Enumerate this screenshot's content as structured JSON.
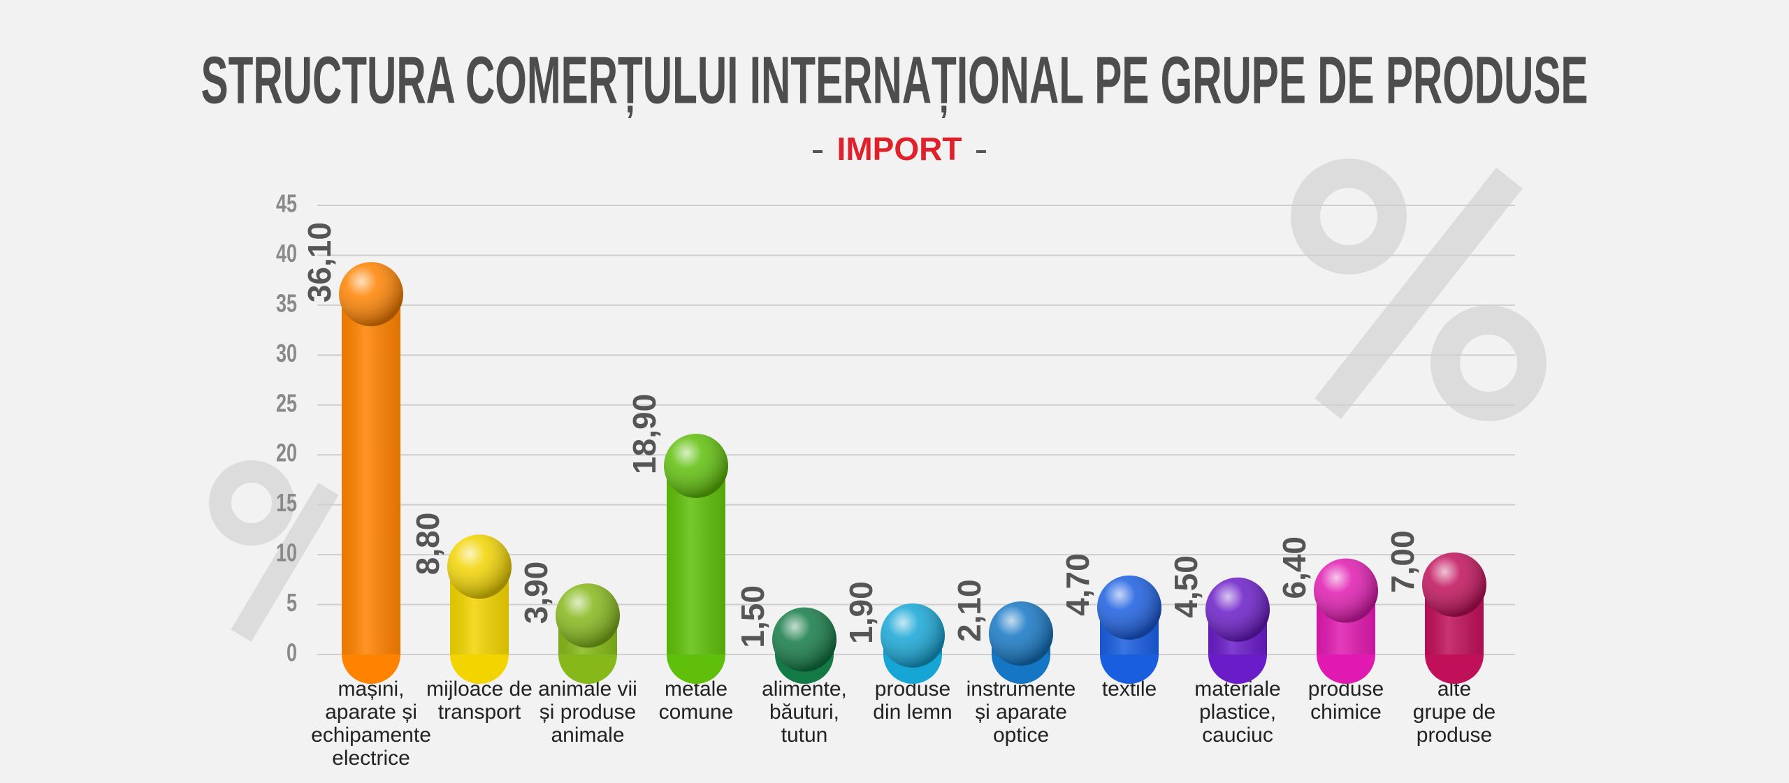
{
  "chart_data": {
    "type": "bar",
    "title": "STRUCTURA COMERȚULUI INTERNAȚIONAL PE GRUPE DE PRODUSE",
    "subtitle": "IMPORT",
    "categories": [
      [
        "mașini,",
        "aparate și",
        "echipamente",
        "electrice"
      ],
      [
        "mijloace de",
        "transport"
      ],
      [
        "animale vii",
        "și produse",
        "animale"
      ],
      [
        "metale",
        "comune"
      ],
      [
        "alimente,",
        "băuturi,",
        "tutun"
      ],
      [
        "produse",
        "din lemn"
      ],
      [
        "instrumente",
        "și aparate",
        "optice"
      ],
      [
        "textile"
      ],
      [
        "materiale",
        "plastice,",
        "cauciuc"
      ],
      [
        "produse",
        "chimice"
      ],
      [
        "alte",
        "grupe de",
        "produse"
      ]
    ],
    "values": [
      36.1,
      8.8,
      3.9,
      18.9,
      1.5,
      1.9,
      2.1,
      4.7,
      4.5,
      6.4,
      7.0
    ],
    "value_labels": [
      "36,10",
      "8,80",
      "3,90",
      "18,90",
      "1,50",
      "1,90",
      "2,10",
      "4,70",
      "4,50",
      "6,40",
      "7,00"
    ],
    "colors": [
      "#ff8200",
      "#f2d400",
      "#86b81a",
      "#5fbf0a",
      "#137a45",
      "#16a6d6",
      "#1476c4",
      "#1a5ee0",
      "#6a1cc8",
      "#e01ab0",
      "#c0105a"
    ],
    "ylim": [
      0,
      45
    ],
    "yticks": [
      0,
      5,
      10,
      15,
      20,
      25,
      30,
      35,
      40,
      45
    ],
    "grid": true
  }
}
